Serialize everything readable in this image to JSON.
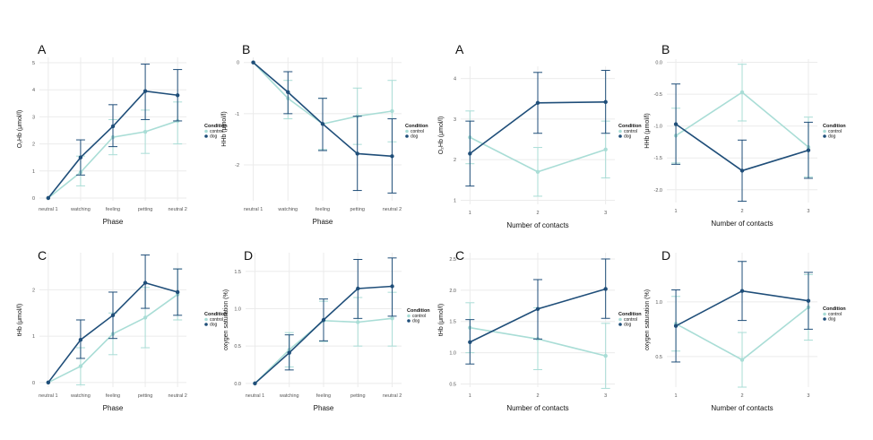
{
  "colors": {
    "control": "#a9ddd6",
    "dog": "#1f4e79",
    "grid": "#ebebeb",
    "tick": "#555555",
    "text": "#111111"
  },
  "chart_data": [
    {
      "type": "line",
      "panel_label": "A",
      "xlabel": "Phase",
      "ylabel": "O₂Hb (μmol/l)",
      "categories": [
        "neutral 1",
        "watching",
        "feeling",
        "petting",
        "neutral 2"
      ],
      "yticks": [
        0,
        1,
        2,
        3,
        4,
        5
      ],
      "ylim": [
        -0.1,
        5.2
      ],
      "grid": true,
      "legend": {
        "title": "Condition",
        "entries": [
          "control",
          "dog"
        ],
        "position": "right"
      },
      "series": [
        {
          "name": "control",
          "values": [
            0,
            0.95,
            2.25,
            2.45,
            2.85
          ],
          "err_lo": [
            0,
            0.45,
            1.6,
            1.65,
            2.0
          ],
          "err_hi": [
            0,
            1.55,
            2.9,
            3.25,
            3.55
          ]
        },
        {
          "name": "dog",
          "values": [
            0,
            1.5,
            2.65,
            3.95,
            3.8
          ],
          "err_lo": [
            0,
            0.85,
            1.9,
            2.9,
            2.85
          ],
          "err_hi": [
            0,
            2.15,
            3.45,
            4.95,
            4.75
          ]
        }
      ]
    },
    {
      "type": "line",
      "panel_label": "B",
      "xlabel": "Phase",
      "ylabel": "HHb (μmol/l)",
      "categories": [
        "neutral 1",
        "watching",
        "feeling",
        "petting",
        "neutral 2"
      ],
      "yticks": [
        0,
        -1,
        -2
      ],
      "ylim": [
        -2.7,
        0.1
      ],
      "grid": true,
      "legend": {
        "title": "Condition",
        "entries": [
          "control",
          "dog"
        ],
        "position": "right"
      },
      "series": [
        {
          "name": "control",
          "values": [
            0,
            -0.7,
            -1.2,
            -1.05,
            -0.95
          ],
          "err_lo": [
            0,
            -1.1,
            -1.7,
            -1.6,
            -1.55
          ],
          "err_hi": [
            0,
            -0.35,
            -0.7,
            -0.5,
            -0.35
          ]
        },
        {
          "name": "dog",
          "values": [
            0,
            -0.58,
            -1.2,
            -1.78,
            -1.83
          ],
          "err_lo": [
            0,
            -1.0,
            -1.72,
            -2.5,
            -2.55
          ],
          "err_hi": [
            0,
            -0.18,
            -0.7,
            -1.05,
            -1.1
          ]
        }
      ]
    },
    {
      "type": "line",
      "panel_label": "A",
      "xlabel": "Number of contacts",
      "ylabel": "O₂Hb (μmol/l)",
      "categories": [
        "1",
        "2",
        "3"
      ],
      "yticks": [
        1,
        2,
        3,
        4
      ],
      "ylim": [
        0.9,
        4.3
      ],
      "grid": true,
      "legend": {
        "title": "Condition",
        "entries": [
          "control",
          "dog"
        ],
        "position": "right"
      },
      "series": [
        {
          "name": "control",
          "values": [
            2.55,
            1.7,
            2.25
          ],
          "err_lo": [
            1.9,
            1.1,
            1.55
          ],
          "err_hi": [
            3.2,
            2.3,
            2.95
          ]
        },
        {
          "name": "dog",
          "values": [
            2.15,
            3.4,
            3.42
          ],
          "err_lo": [
            1.35,
            2.65,
            2.65
          ],
          "err_hi": [
            2.95,
            4.15,
            4.2
          ]
        }
      ]
    },
    {
      "type": "line",
      "panel_label": "B",
      "xlabel": "Number of contacts",
      "ylabel": "HHb (μmol/l)",
      "categories": [
        "1",
        "2",
        "3"
      ],
      "yticks": [
        0.0,
        -0.5,
        -1.0,
        -1.5,
        -2.0
      ],
      "ytick_labels": [
        "0.0",
        "-0.5",
        "-1.0",
        "-1.5",
        "-2.0"
      ],
      "ylim": [
        -2.2,
        0.05
      ],
      "grid": true,
      "legend": {
        "title": "Condition",
        "entries": [
          "control",
          "dog"
        ],
        "position": "right"
      },
      "series": [
        {
          "name": "control",
          "values": [
            -1.15,
            -0.47,
            -1.33
          ],
          "err_lo": [
            -1.58,
            -0.92,
            -1.8
          ],
          "err_hi": [
            -0.72,
            -0.03,
            -0.86
          ]
        },
        {
          "name": "dog",
          "values": [
            -0.97,
            -1.7,
            -1.38
          ],
          "err_lo": [
            -1.6,
            -2.18,
            -1.82
          ],
          "err_hi": [
            -0.34,
            -1.22,
            -0.94
          ]
        }
      ]
    },
    {
      "type": "line",
      "panel_label": "C",
      "xlabel": "Phase",
      "ylabel": "tHb (μmol/l)",
      "categories": [
        "neutral 1",
        "watching",
        "feeling",
        "petting",
        "neutral 2"
      ],
      "yticks": [
        0,
        1,
        2
      ],
      "ylim": [
        -0.1,
        2.8
      ],
      "grid": true,
      "legend": {
        "title": "Condition",
        "entries": [
          "control",
          "dog"
        ],
        "position": "right"
      },
      "series": [
        {
          "name": "control",
          "values": [
            0,
            0.35,
            1.05,
            1.4,
            1.9
          ],
          "err_lo": [
            0,
            -0.05,
            0.6,
            0.75,
            1.35
          ],
          "err_hi": [
            0,
            0.75,
            1.5,
            2.05,
            2.45
          ]
        },
        {
          "name": "dog",
          "values": [
            0,
            0.92,
            1.45,
            2.15,
            1.95
          ],
          "err_lo": [
            0,
            0.52,
            0.95,
            1.6,
            1.45
          ],
          "err_hi": [
            0,
            1.35,
            1.95,
            2.75,
            2.45
          ]
        }
      ]
    },
    {
      "type": "line",
      "panel_label": "D",
      "xlabel": "Phase",
      "ylabel": "oxygen saturation (%)",
      "categories": [
        "neutral 1",
        "watching",
        "feeling",
        "petting",
        "neutral 2"
      ],
      "yticks": [
        0.0,
        0.5,
        1.0,
        1.5
      ],
      "ytick_labels": [
        "0.0",
        "0.5",
        "1.0",
        "1.5"
      ],
      "ylim": [
        -0.05,
        1.75
      ],
      "grid": true,
      "legend": {
        "title": "Condition",
        "entries": [
          "control",
          "dog"
        ],
        "position": "right"
      },
      "series": [
        {
          "name": "control",
          "values": [
            0,
            0.45,
            0.84,
            0.82,
            0.87
          ],
          "err_lo": [
            0,
            0.22,
            0.56,
            0.5,
            0.5
          ],
          "err_hi": [
            0,
            0.68,
            1.1,
            1.15,
            1.22
          ]
        },
        {
          "name": "dog",
          "values": [
            0,
            0.41,
            0.85,
            1.27,
            1.3
          ],
          "err_lo": [
            0,
            0.18,
            0.57,
            0.87,
            0.9
          ],
          "err_hi": [
            0,
            0.65,
            1.13,
            1.66,
            1.68
          ]
        }
      ]
    },
    {
      "type": "line",
      "panel_label": "C",
      "xlabel": "Number of contacts",
      "ylabel": "tHb (μmol/l)",
      "categories": [
        "1",
        "2",
        "3"
      ],
      "yticks": [
        0.5,
        1.0,
        1.5,
        2.0,
        2.5
      ],
      "ytick_labels": [
        "0.5",
        "1.0",
        "1.5",
        "2.0",
        "2.5"
      ],
      "ylim": [
        0.45,
        2.6
      ],
      "grid": true,
      "legend": {
        "title": "Condition",
        "entries": [
          "control",
          "dog"
        ],
        "position": "right"
      },
      "series": [
        {
          "name": "control",
          "values": [
            1.4,
            1.22,
            0.95
          ],
          "err_lo": [
            1.0,
            0.73,
            0.43
          ],
          "err_hi": [
            1.8,
            1.72,
            1.47
          ]
        },
        {
          "name": "dog",
          "values": [
            1.17,
            1.7,
            2.02
          ],
          "err_lo": [
            0.82,
            1.22,
            1.55
          ],
          "err_hi": [
            1.53,
            2.17,
            2.5
          ]
        }
      ]
    },
    {
      "type": "line",
      "panel_label": "D",
      "xlabel": "Number of contacts",
      "ylabel": "oxygen saturation (%)",
      "categories": [
        "1",
        "2",
        "3"
      ],
      "yticks": [
        0.5,
        1.0
      ],
      "ytick_labels": [
        "0.5",
        "1.0"
      ],
      "ylim": [
        0.22,
        1.45
      ],
      "grid": true,
      "legend": {
        "title": "Condition",
        "entries": [
          "control",
          "dog"
        ],
        "position": "right"
      },
      "series": [
        {
          "name": "control",
          "values": [
            0.8,
            0.47,
            0.95
          ],
          "err_lo": [
            0.55,
            0.22,
            0.65
          ],
          "err_hi": [
            1.05,
            0.72,
            1.25
          ]
        },
        {
          "name": "dog",
          "values": [
            0.78,
            1.1,
            1.01
          ],
          "err_lo": [
            0.45,
            0.83,
            0.75
          ],
          "err_hi": [
            1.11,
            1.37,
            1.27
          ]
        }
      ]
    }
  ]
}
